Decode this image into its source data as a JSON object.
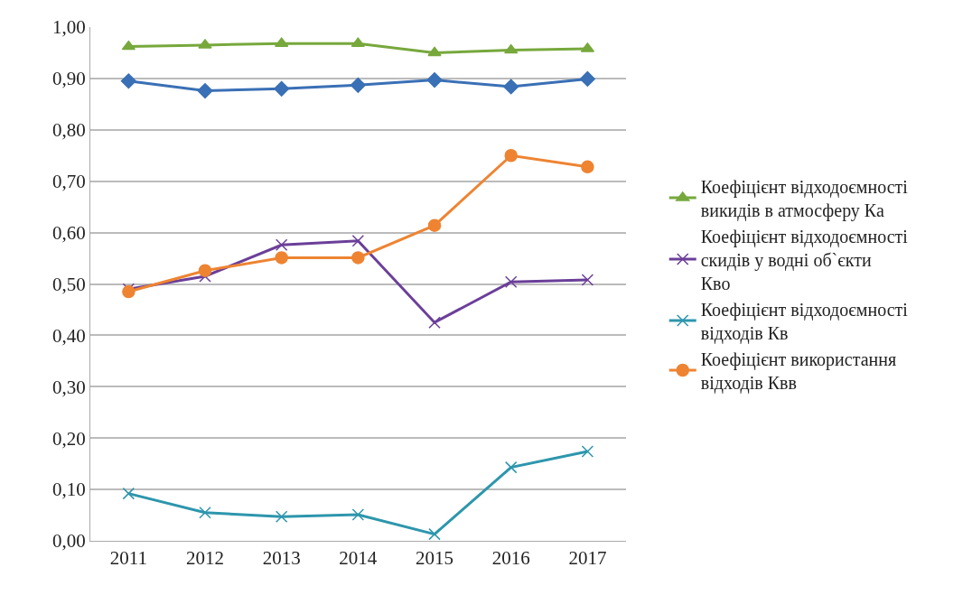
{
  "chart_data": {
    "type": "line",
    "categories": [
      "2011",
      "2012",
      "2013",
      "2014",
      "2015",
      "2016",
      "2017"
    ],
    "series": [
      {
        "name": "Коефіцієнт відходоємності викидів в атмосферу Ка",
        "color": "#77a83c",
        "marker": "triangle",
        "values": [
          0.962,
          0.965,
          0.968,
          0.968,
          0.95,
          0.955,
          0.958
        ]
      },
      {
        "color": "#3a70b5",
        "marker": "diamond",
        "values": [
          0.895,
          0.876,
          0.88,
          0.887,
          0.897,
          0.884,
          0.899
        ]
      },
      {
        "name": "Коефіцієнт відходоємності скидів у водні об`єкти Кво",
        "color": "#6b3f99",
        "marker": "cross",
        "values": [
          0.49,
          0.515,
          0.576,
          0.584,
          0.425,
          0.504,
          0.508
        ]
      },
      {
        "name": "Коефіцієнт відходоємності відходів Кв",
        "color": "#2d96ad",
        "marker": "cross",
        "values": [
          0.092,
          0.055,
          0.047,
          0.051,
          0.013,
          0.143,
          0.174
        ]
      },
      {
        "name": "Коефіцієнт використання відходів Квв",
        "color": "#ee8432",
        "marker": "circle",
        "values": [
          0.485,
          0.526,
          0.551,
          0.551,
          0.614,
          0.75,
          0.728
        ]
      }
    ],
    "ylim": [
      0,
      1
    ],
    "yticks": [
      {
        "value": 0,
        "label": "0,00"
      },
      {
        "value": 0.1,
        "label": "0,10"
      },
      {
        "value": 0.2,
        "label": "0,20"
      },
      {
        "value": 0.3,
        "label": "0,30"
      },
      {
        "value": 0.4,
        "label": "0,40"
      },
      {
        "value": 0.5,
        "label": "0,50"
      },
      {
        "value": 0.6,
        "label": "0,60"
      },
      {
        "value": 0.7,
        "label": "0,70"
      },
      {
        "value": 0.8,
        "label": "0,80"
      },
      {
        "value": 0.9,
        "label": "0,90"
      },
      {
        "value": 1,
        "label": "1,00"
      }
    ],
    "grid": "y",
    "legend": "right",
    "line_style": "solid"
  }
}
